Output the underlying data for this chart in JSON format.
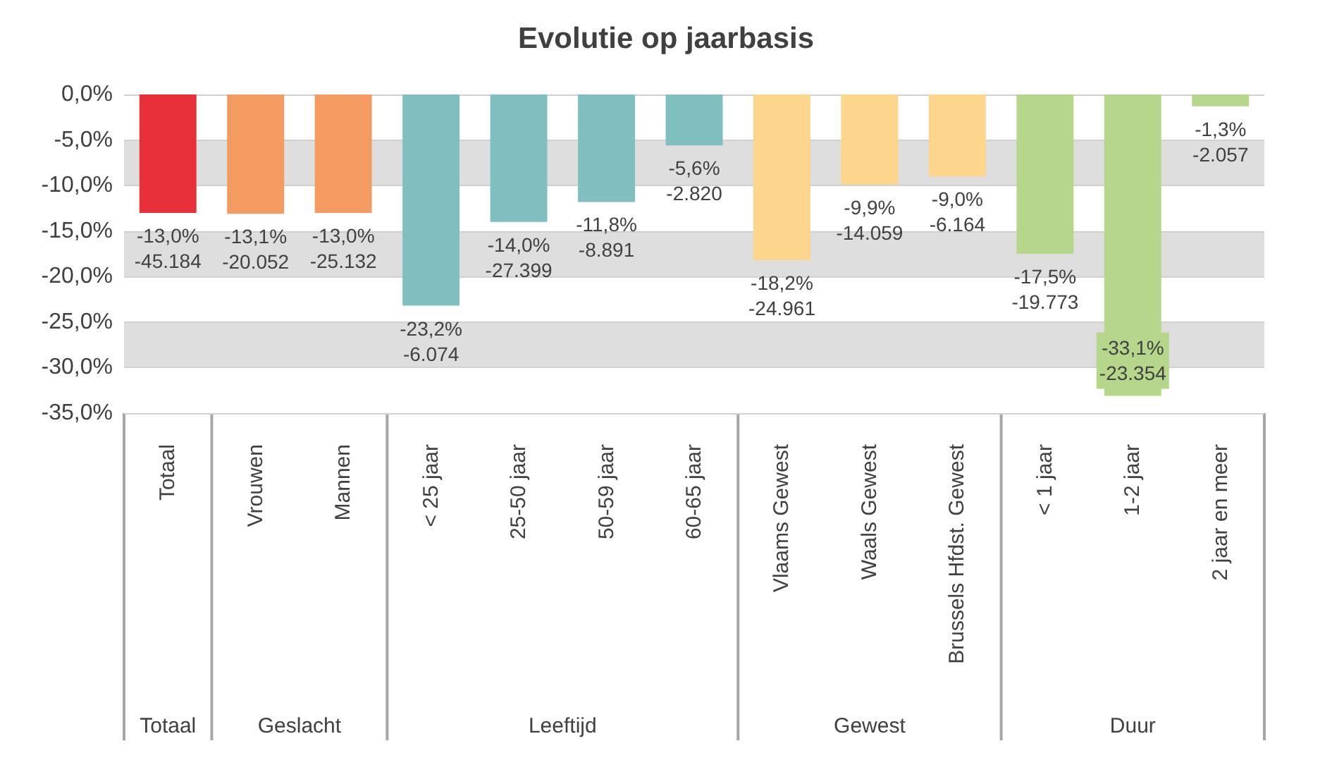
{
  "chart_data": {
    "type": "bar",
    "title": "Evolutie op jaarbasis",
    "categories": [
      "Totaal",
      "Vrouwen",
      "Mannen",
      "< 25 jaar",
      "25-50 jaar",
      "50-59 jaar",
      "60-65 jaar",
      "Vlaams Gewest",
      "Waals Gewest",
      "Brussels Hfdst. Gewest",
      "< 1 jaar",
      "1-2 jaar",
      "2 jaar en meer"
    ],
    "values": [
      -13.0,
      -13.1,
      -13.0,
      -23.2,
      -14.0,
      -11.8,
      -5.6,
      -18.2,
      -9.9,
      -9.0,
      -17.5,
      -33.1,
      -1.3
    ],
    "colors": [
      "#e8303a",
      "#f39b61",
      "#f39b61",
      "#7fbfbf",
      "#7fbfbf",
      "#7fbfbf",
      "#7fbfbf",
      "#fdd58c",
      "#fdd58c",
      "#fdd58c",
      "#b5d68b",
      "#b5d68b",
      "#b5d68b"
    ],
    "value_labels": [
      "-13,0%\n-45.184",
      "-13,1%\n-20.052",
      "-13,0%\n-25.132",
      "-23,2%\n-6.074",
      "-14,0%\n-27.399",
      "-11,8%\n-8.891",
      "-5,6%\n-2.820",
      "-18,2%\n-24.961",
      "-9,9%\n-14.059",
      "-9,0%\n-6.164",
      "-17,5%\n-19.773",
      "-33,1%\n-23.354",
      "-1,3%\n-2.057"
    ],
    "annotations": [
      "Totaal",
      "Geslacht",
      "Leeftijd",
      "Gewest",
      "Duur"
    ],
    "ylim": [
      -35,
      0
    ],
    "yticks": [
      {
        "value": 0,
        "label": "0,0%"
      },
      {
        "value": -5,
        "label": "-5,0%"
      },
      {
        "value": -10,
        "label": "-10,0%"
      },
      {
        "value": -15,
        "label": "-15,0%"
      },
      {
        "value": -20,
        "label": "-20,0%"
      },
      {
        "value": -25,
        "label": "-25,0%"
      },
      {
        "value": -30,
        "label": "-30,0%"
      },
      {
        "value": -35,
        "label": "-35,0%"
      }
    ],
    "grid": "y"
  }
}
